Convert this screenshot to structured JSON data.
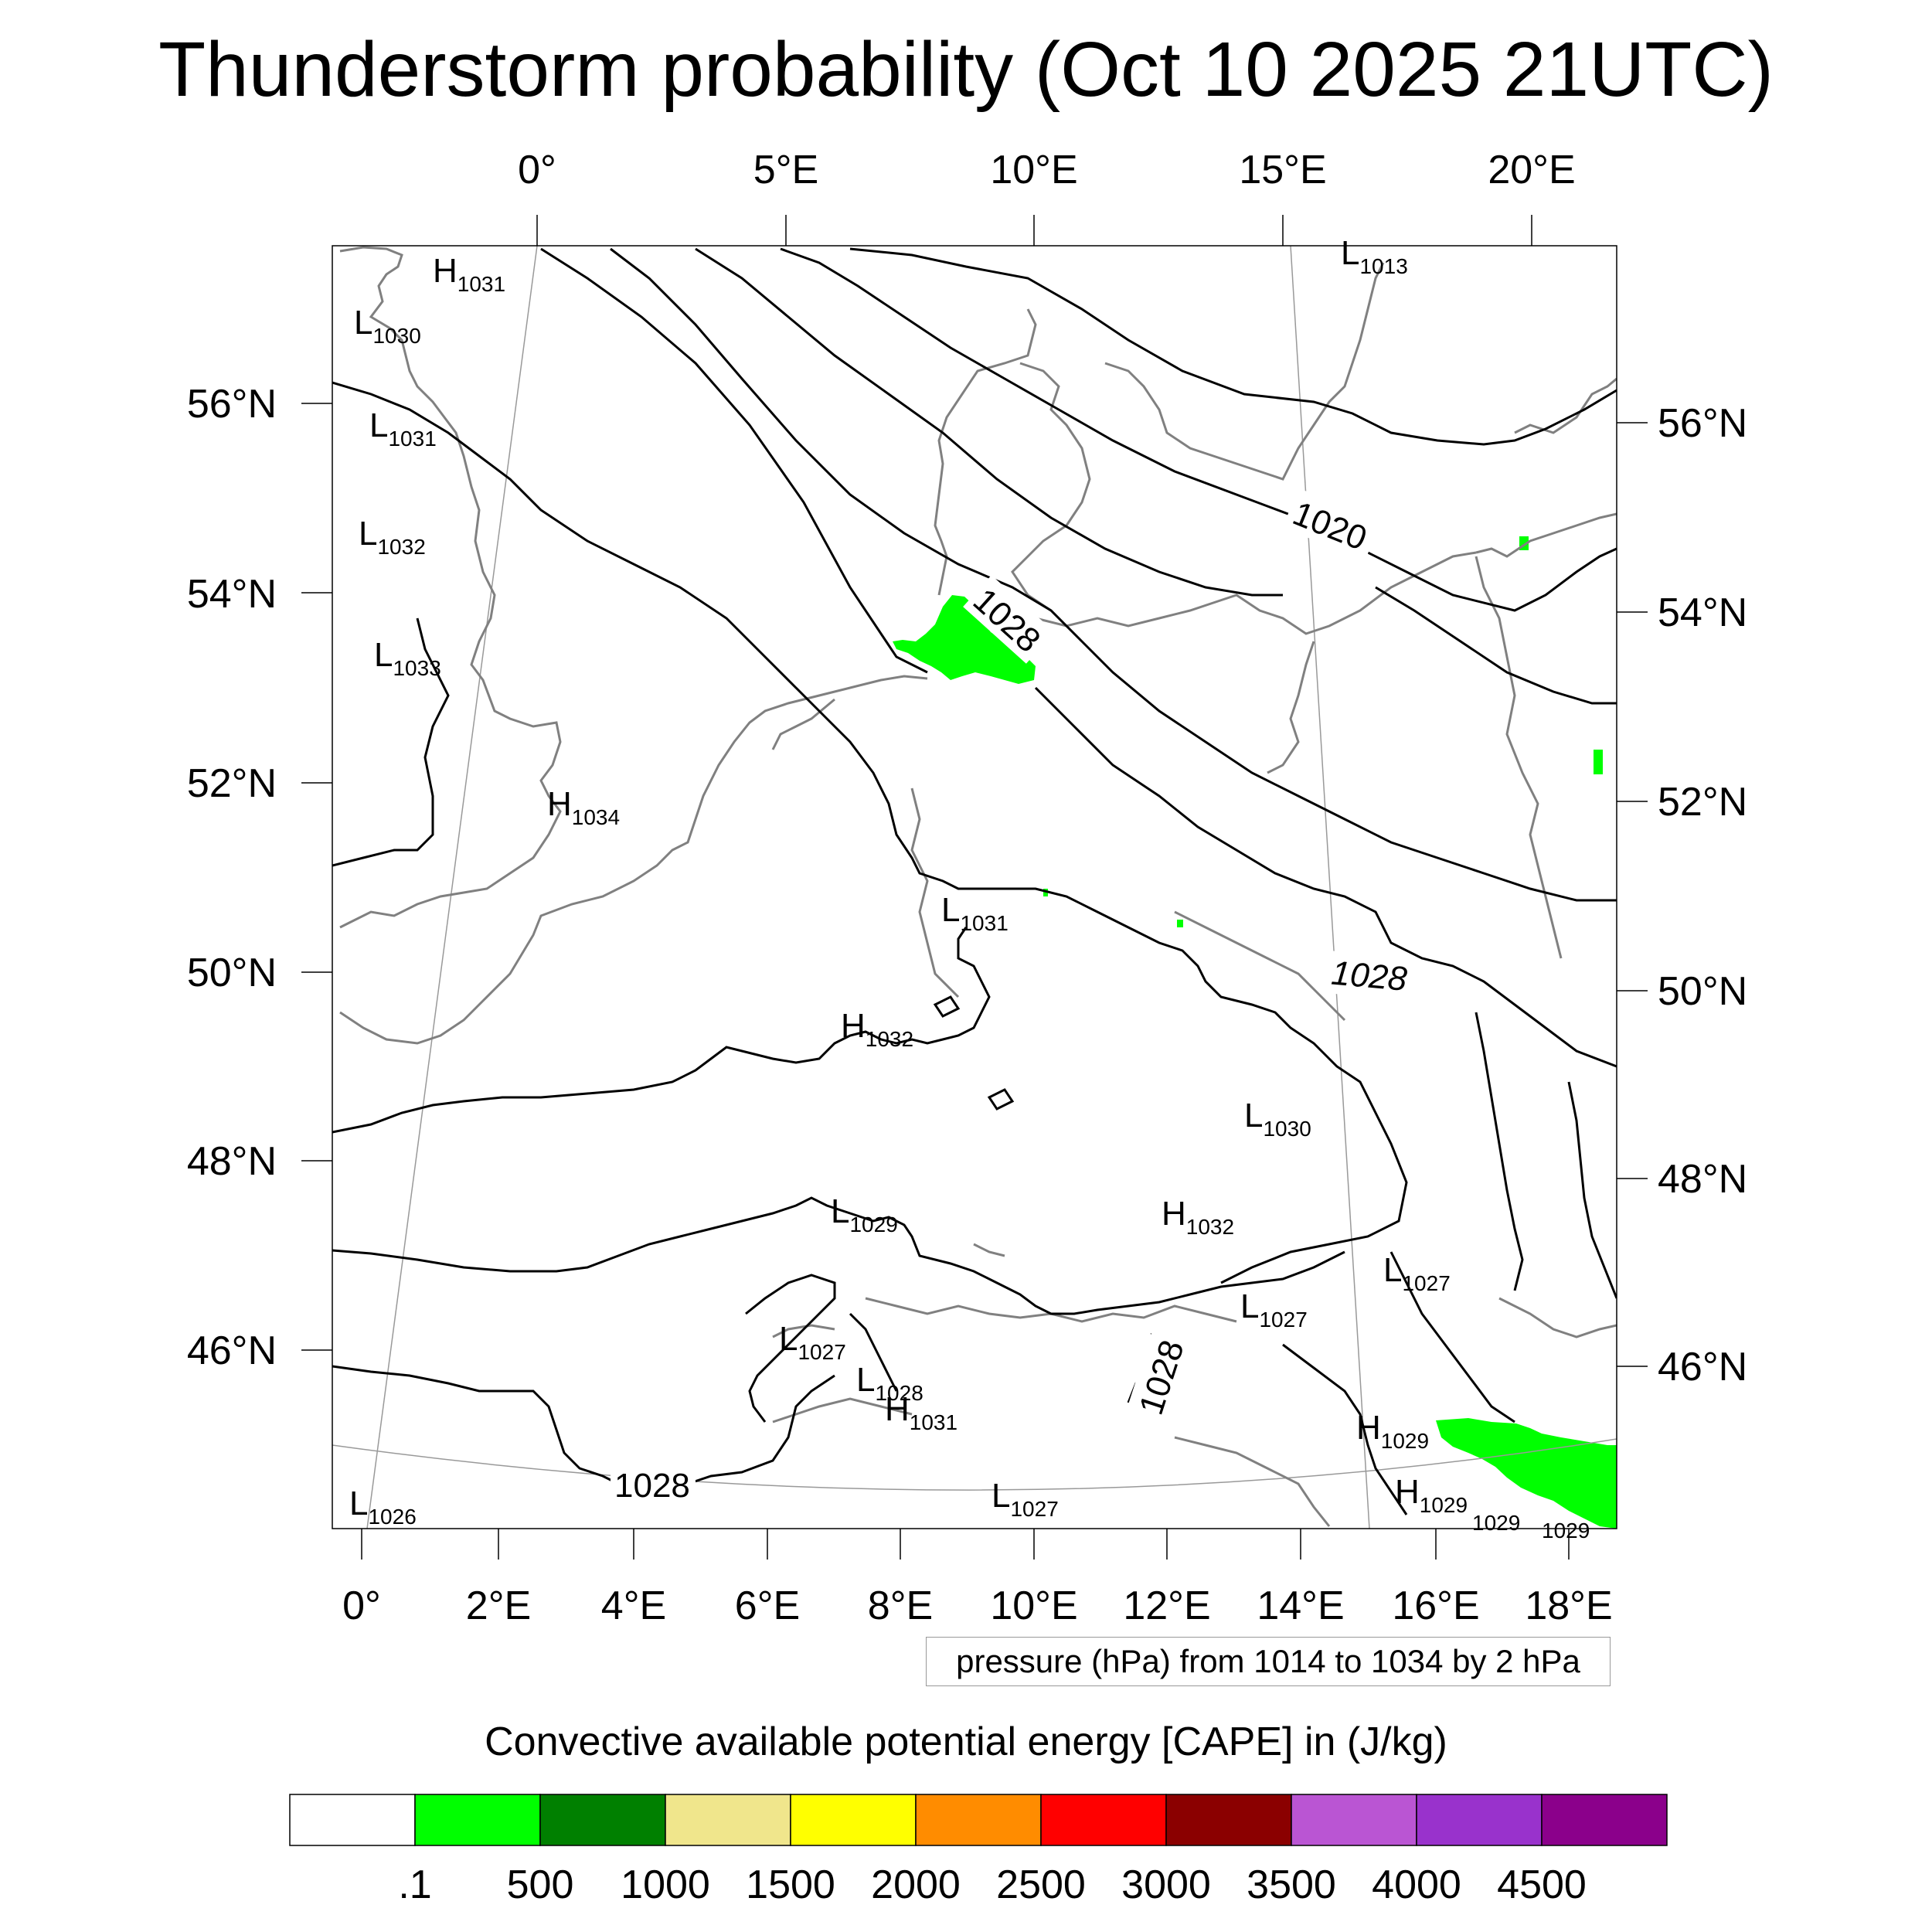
{
  "title": "Thunderstorm probability (Oct 10 2025 21UTC)",
  "map": {
    "projection": "conic",
    "top_lon_labels": [
      "0°",
      "5°E",
      "10°E",
      "15°E",
      "20°E"
    ],
    "bottom_lon_labels": [
      "0°",
      "2°E",
      "4°E",
      "6°E",
      "8°E",
      "10°E",
      "12°E",
      "14°E",
      "16°E",
      "18°E"
    ],
    "left_lat_labels": [
      "56°N",
      "54°N",
      "52°N",
      "50°N",
      "48°N",
      "46°N"
    ],
    "right_lat_labels": [
      "56°N",
      "54°N",
      "52°N",
      "50°N",
      "48°N",
      "46°N"
    ],
    "isobar_labels": [
      "1020",
      "1028",
      "1028",
      "1028",
      "1028"
    ],
    "pressure_centers": [
      {
        "letter": "H",
        "value": "1031"
      },
      {
        "letter": "L",
        "value": "1030"
      },
      {
        "letter": "L",
        "value": "1013"
      },
      {
        "letter": "L",
        "value": "1031"
      },
      {
        "letter": "L",
        "value": "1032"
      },
      {
        "letter": "L",
        "value": "1033"
      },
      {
        "letter": "H",
        "value": "1034"
      },
      {
        "letter": "L",
        "value": "1031"
      },
      {
        "letter": "H",
        "value": "1032"
      },
      {
        "letter": "L",
        "value": "1030"
      },
      {
        "letter": "L",
        "value": "1029"
      },
      {
        "letter": "H",
        "value": "1032"
      },
      {
        "letter": "L",
        "value": "1027"
      },
      {
        "letter": "L",
        "value": "1027"
      },
      {
        "letter": "L",
        "value": "1027"
      },
      {
        "letter": "L",
        "value": "1028"
      },
      {
        "letter": "H",
        "value": "1031"
      },
      {
        "letter": "H",
        "value": "1029"
      },
      {
        "letter": "H",
        "value": "1029"
      },
      {
        "letter": "L",
        "value": "1027"
      },
      {
        "letter": "L",
        "value": "1026"
      },
      {
        "letter": "",
        "value": "1029"
      },
      {
        "letter": "",
        "value": "1029"
      }
    ],
    "pressure_note": "pressure (hPa) from 1014 to 1034 by 2 hPa",
    "cape_color": "#00ff00",
    "contour_color": "#000000",
    "coastline_color": "#808080"
  },
  "colorbar": {
    "title": "Convective available potential energy [CAPE] in (J/kg)",
    "colors": [
      "#ffffff",
      "#00ff00",
      "#008000",
      "#f0e68c",
      "#ffff00",
      "#ff8c00",
      "#ff0000",
      "#8b0000",
      "#ba55d3",
      "#9932cc",
      "#8b008b"
    ],
    "tick_labels": [
      ".1",
      "500",
      "1000",
      "1500",
      "2000",
      "2500",
      "3000",
      "3500",
      "4000",
      "4500"
    ]
  }
}
